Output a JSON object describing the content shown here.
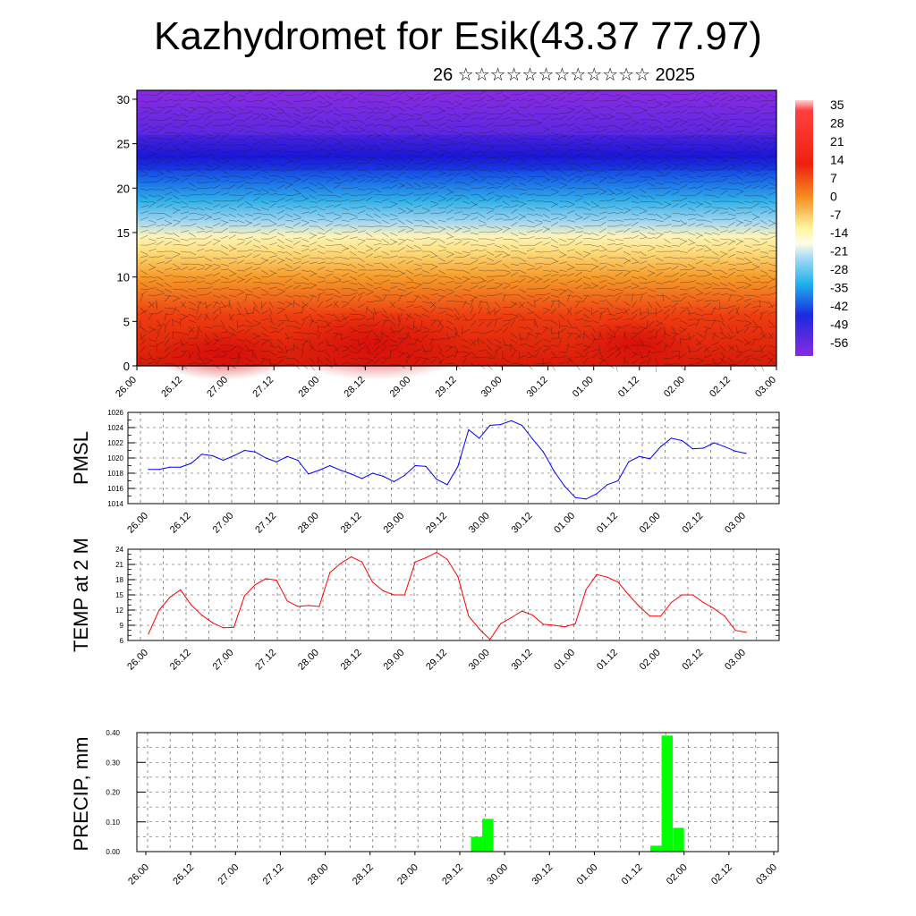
{
  "title": "Kazhydromet for Esik(43.37 77.97)",
  "subtitle": "26 ☆☆☆☆☆☆☆☆☆☆☆☆ 2025",
  "time_labels": [
    "26.00",
    "26.12",
    "27.00",
    "27.12",
    "28.00",
    "28.12",
    "29.00",
    "29.12",
    "30.00",
    "30.12",
    "01.00",
    "01.12",
    "02.00",
    "02.12",
    "03.00"
  ],
  "chart_data": [
    {
      "type": "heatmap",
      "title": "",
      "y_ticks": [
        0,
        5,
        10,
        15,
        20,
        25,
        30
      ],
      "ylim": [
        0,
        31
      ],
      "colorbar_labels": [
        "35",
        "28",
        "21",
        "14",
        "7",
        "0",
        "-7",
        "-14",
        "-21",
        "-28",
        "-35",
        "-42",
        "-49",
        "-56"
      ],
      "description_colors": {
        "warm": "#e8140a",
        "mid": "#ffe060",
        "cold": "#1a1adc",
        "top": "#8a2be2"
      },
      "overlay": "wind barbs"
    },
    {
      "type": "line",
      "ylabel": "PMSL",
      "ylim": [
        1014,
        1026
      ],
      "y_ticks": [
        1014,
        1016,
        1018,
        1020,
        1022,
        1024,
        1026
      ],
      "color": "#0000ff",
      "x": [
        0,
        1,
        2,
        3,
        4,
        5,
        6,
        7,
        8,
        9,
        10,
        11,
        12,
        13,
        14,
        15,
        16,
        17,
        18,
        19,
        20,
        21,
        22,
        23,
        24,
        25,
        26,
        27,
        28,
        29,
        30,
        31,
        32,
        33,
        34,
        35,
        36,
        37,
        38,
        39,
        40,
        41,
        42,
        43,
        44,
        45,
        46,
        47,
        48,
        49,
        50,
        51,
        52,
        53,
        54,
        55,
        56
      ],
      "values": [
        1018.5,
        1018.5,
        1018.8,
        1018.8,
        1019.3,
        1020.5,
        1020.3,
        1019.7,
        1020.3,
        1021.0,
        1020.8,
        1020.0,
        1019.5,
        1020.2,
        1019.7,
        1017.9,
        1018.4,
        1019.0,
        1018.4,
        1017.9,
        1017.3,
        1018.0,
        1017.6,
        1016.9,
        1017.7,
        1019.0,
        1018.9,
        1017.2,
        1016.5,
        1018.9,
        1023.7,
        1022.6,
        1024.3,
        1024.4,
        1024.9,
        1024.3,
        1022.5,
        1020.8,
        1018.3,
        1016.3,
        1014.8,
        1014.6,
        1015.3,
        1016.5,
        1017.0,
        1019.5,
        1020.2,
        1019.9,
        1021.5,
        1022.6,
        1022.3,
        1021.2,
        1021.3,
        1022.0,
        1021.5,
        1020.9,
        1020.6
      ]
    },
    {
      "type": "line",
      "ylabel": "TEMP at 2 M",
      "ylim": [
        6,
        24
      ],
      "y_ticks": [
        6,
        9,
        12,
        15,
        18,
        21,
        24
      ],
      "color": "#ff0000",
      "x": [
        0,
        1,
        2,
        3,
        4,
        5,
        6,
        7,
        8,
        9,
        10,
        11,
        12,
        13,
        14,
        15,
        16,
        17,
        18,
        19,
        20,
        21,
        22,
        23,
        24,
        25,
        26,
        27,
        28,
        29,
        30,
        31,
        32,
        33,
        34,
        35,
        36,
        37,
        38,
        39,
        40,
        41,
        42,
        43,
        44,
        45,
        46,
        47,
        48,
        49,
        50,
        51,
        52,
        53,
        54,
        55,
        56
      ],
      "values": [
        7.3,
        12.0,
        14.5,
        16.0,
        13.0,
        11.0,
        9.5,
        8.5,
        8.6,
        14.8,
        17.0,
        18.2,
        17.9,
        13.8,
        12.7,
        12.9,
        12.7,
        19.4,
        21.2,
        22.5,
        21.5,
        17.5,
        15.8,
        15.0,
        15.0,
        21.5,
        22.3,
        23.4,
        22.0,
        18.6,
        10.8,
        8.3,
        6.2,
        9.3,
        10.5,
        11.8,
        11.0,
        9.2,
        9.0,
        8.7,
        9.3,
        16.0,
        19.0,
        18.5,
        17.5,
        15.0,
        12.7,
        10.8,
        10.8,
        13.5,
        15.0,
        15.0,
        13.5,
        12.3,
        10.8,
        8.0,
        7.6
      ]
    },
    {
      "type": "bar",
      "ylabel": "PRECIP, mm",
      "ylim": [
        0,
        0.4
      ],
      "y_ticks": [
        "0.00",
        "0.10",
        "0.20",
        "0.30",
        "0.40"
      ],
      "color": "#00ff00",
      "x": [
        29.5,
        30.5,
        45.5,
        46.5,
        47.5
      ],
      "values": [
        0.05,
        0.11,
        0.02,
        0.39,
        0.08
      ]
    }
  ]
}
